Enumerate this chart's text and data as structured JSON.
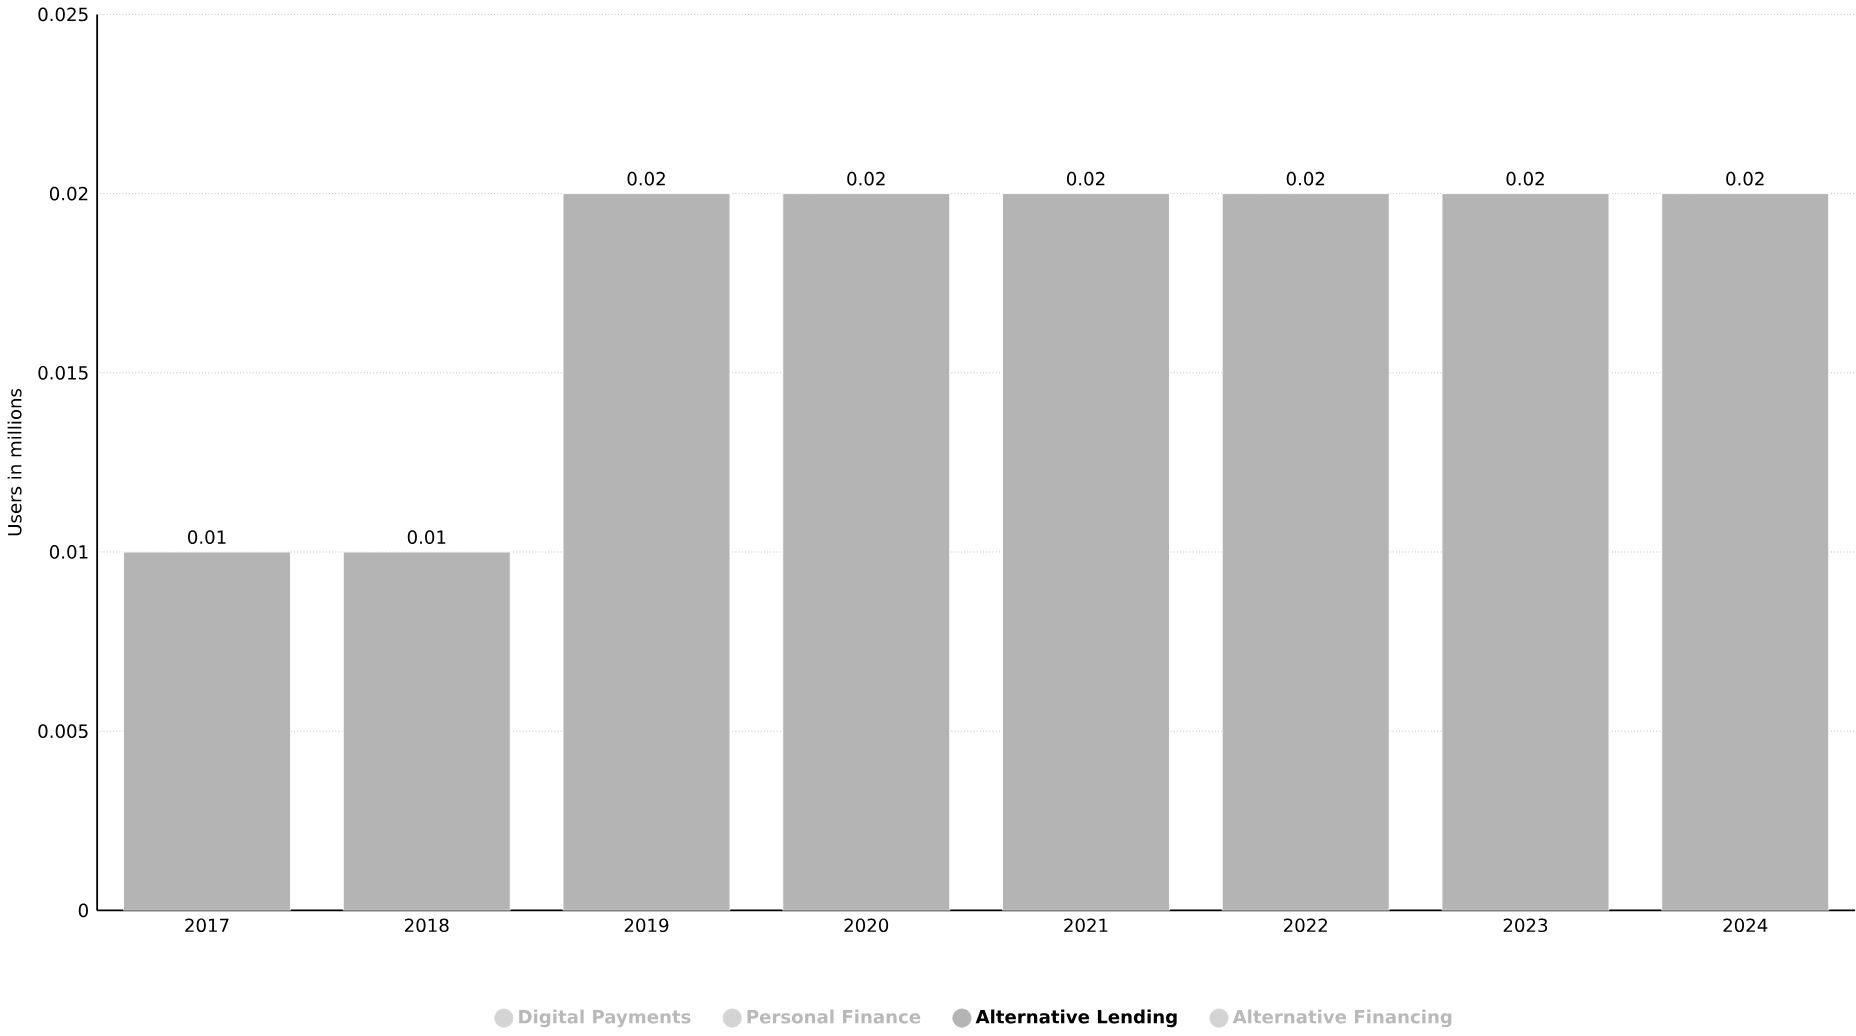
{
  "chart_data": {
    "type": "bar",
    "ylabel": "Users in millions",
    "categories": [
      "2017",
      "2018",
      "2019",
      "2020",
      "2021",
      "2022",
      "2023",
      "2024"
    ],
    "series": [
      {
        "name": "Digital Payments",
        "color": "#d4d4d4",
        "values": [
          null,
          null,
          null,
          null,
          null,
          null,
          null,
          null
        ]
      },
      {
        "name": "Personal Finance",
        "color": "#d4d4d4",
        "values": [
          null,
          null,
          null,
          null,
          null,
          null,
          null,
          null
        ]
      },
      {
        "name": "Alternative Lending",
        "color": "#b4b4b4",
        "values": [
          0.01,
          0.01,
          0.02,
          0.02,
          0.02,
          0.02,
          0.02,
          0.02
        ]
      },
      {
        "name": "Alternative Financing",
        "color": "#d4d4d4",
        "values": [
          null,
          null,
          null,
          null,
          null,
          null,
          null,
          null
        ]
      }
    ],
    "ylim": [
      0,
      0.025
    ],
    "yticks": [
      0,
      0.005,
      0.01,
      0.015,
      0.02,
      0.025
    ],
    "grid": "y",
    "data_labels": true,
    "legend": "bottom"
  }
}
